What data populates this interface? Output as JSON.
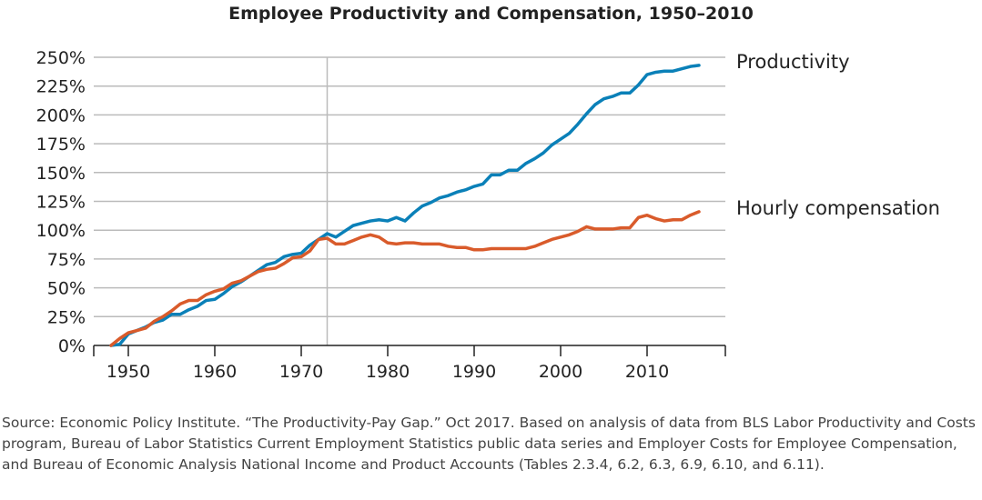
{
  "chart_data": {
    "type": "line",
    "title": "Employee Productivity and Compensation, 1950–2010",
    "xlabel": "",
    "ylabel": "",
    "ylim": [
      0,
      250
    ],
    "xlim": [
      1945,
      2019
    ],
    "yticks": [
      "0%",
      "25%",
      "50%",
      "75%",
      "100%",
      "125%",
      "150%",
      "175%",
      "200%",
      "225%",
      "250%"
    ],
    "xticks": [
      "1950",
      "1960",
      "1970",
      "1980",
      "1990",
      "2000",
      "2010"
    ],
    "grid": "horizontal",
    "reference_line_year": 1973,
    "x": [
      1948,
      1949,
      1950,
      1951,
      1952,
      1953,
      1954,
      1955,
      1956,
      1957,
      1958,
      1959,
      1960,
      1961,
      1962,
      1963,
      1964,
      1965,
      1966,
      1967,
      1968,
      1969,
      1970,
      1971,
      1972,
      1973,
      1974,
      1975,
      1976,
      1977,
      1978,
      1979,
      1980,
      1981,
      1982,
      1983,
      1984,
      1985,
      1986,
      1987,
      1988,
      1989,
      1990,
      1991,
      1992,
      1993,
      1994,
      1995,
      1996,
      1997,
      1998,
      1999,
      2000,
      2001,
      2002,
      2003,
      2004,
      2005,
      2006,
      2007,
      2008,
      2009,
      2010,
      2011,
      2012,
      2013,
      2014,
      2015,
      2016
    ],
    "series": [
      {
        "name": "Productivity",
        "color": "#0a80b8",
        "values": [
          0,
          1,
          10,
          13,
          16,
          20,
          22,
          27,
          27,
          31,
          34,
          39,
          40,
          45,
          51,
          55,
          60,
          65,
          70,
          72,
          77,
          79,
          80,
          87,
          92,
          97,
          94,
          99,
          104,
          106,
          108,
          109,
          108,
          111,
          108,
          115,
          121,
          124,
          128,
          130,
          133,
          135,
          138,
          140,
          148,
          148,
          152,
          152,
          158,
          162,
          167,
          174,
          179,
          184,
          192,
          201,
          209,
          214,
          216,
          219,
          219,
          226,
          235,
          237,
          238,
          238,
          240,
          242,
          243
        ]
      },
      {
        "name": "Hourly compensation",
        "color": "#d95b2b",
        "values": [
          0,
          6,
          11,
          13,
          15,
          21,
          25,
          30,
          36,
          39,
          39,
          44,
          47,
          49,
          54,
          56,
          60,
          64,
          66,
          67,
          71,
          76,
          77,
          82,
          92,
          93,
          88,
          88,
          91,
          94,
          96,
          94,
          89,
          88,
          89,
          89,
          88,
          88,
          88,
          86,
          85,
          85,
          83,
          83,
          84,
          84,
          84,
          84,
          84,
          86,
          89,
          92,
          94,
          96,
          99,
          103,
          101,
          101,
          101,
          102,
          102,
          111,
          113,
          110,
          108,
          109,
          109,
          113,
          116
        ]
      }
    ]
  },
  "source": "Source: Economic Policy Institute. “The Productivity-Pay Gap.” Oct 2017. Based on analysis of data from BLS Labor Productivity and Costs program, Bureau of Labor Statistics Current Employment Statistics public data series and Employer Costs for Employee Compensation, and Bureau of Economic Analysis National Income and Product Accounts (Tables 2.3.4, 6.2, 6.3, 6.9, 6.10, and 6.11)."
}
